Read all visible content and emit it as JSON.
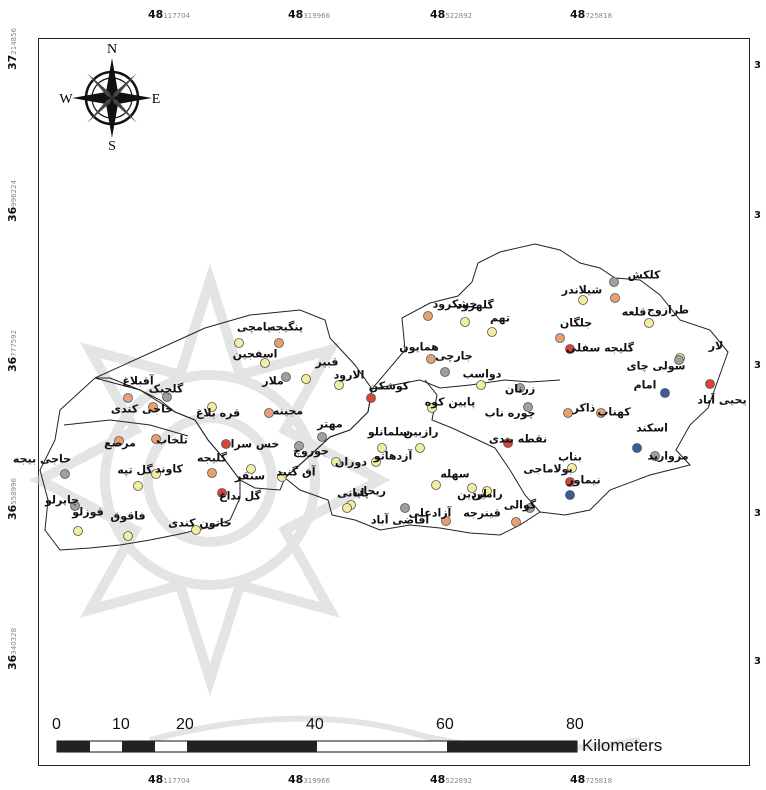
{
  "map": {
    "top_ticks": [
      {
        "major": "48",
        "minor": "117704"
      },
      {
        "major": "48",
        "minor": "319966"
      },
      {
        "major": "48",
        "minor": "522892"
      },
      {
        "major": "48",
        "minor": "725818"
      }
    ],
    "bottom_ticks": [
      {
        "major": "48",
        "minor": "117704"
      },
      {
        "major": "48",
        "minor": "319966"
      },
      {
        "major": "48",
        "minor": "522892"
      },
      {
        "major": "48",
        "minor": "725818"
      }
    ],
    "left_ticks": [
      {
        "major": "37",
        "minor": "214856"
      },
      {
        "major": "36",
        "minor": "996224"
      },
      {
        "major": "36",
        "minor": "777592"
      },
      {
        "major": "36",
        "minor": "558996"
      },
      {
        "major": "36",
        "minor": "340328"
      }
    ],
    "right_ticks": [
      "3",
      "3",
      "3",
      "3",
      "3"
    ],
    "compass": {
      "n": "N",
      "s": "S",
      "e": "E",
      "w": "W"
    },
    "scale": {
      "labels": [
        "0",
        "10",
        "20",
        "40",
        "60",
        "80"
      ],
      "unit": "Kilometers"
    },
    "colors": {
      "border": "#222222",
      "dot_yellow": "#f2eea0",
      "dot_orange": "#e8a070",
      "dot_red": "#d9433a",
      "dot_grey": "#9aa49a",
      "dot_blue": "#3d5a9a",
      "watermark": "#d8d8d8"
    },
    "places": [
      {
        "name": "کلکش",
        "color": "grey"
      },
      {
        "name": "شیلاندر",
        "color": "yellow"
      },
      {
        "name": "قلعه",
        "color": "orange"
      },
      {
        "name": "طرازوج",
        "color": "yellow"
      },
      {
        "name": "خشکرود",
        "color": "orange"
      },
      {
        "name": "گلهرود",
        "color": "yellow"
      },
      {
        "name": "تهم",
        "color": "yellow"
      },
      {
        "name": "جلگان",
        "color": "orange"
      },
      {
        "name": "ینگیجه",
        "color": "yellow"
      },
      {
        "name": "یامچی",
        "color": "orange"
      },
      {
        "name": "لار",
        "color": "yellow"
      },
      {
        "name": "همایون",
        "color": "orange"
      },
      {
        "name": "گلیجه سفلی",
        "color": "red"
      },
      {
        "name": "سولی چای",
        "color": "grey"
      },
      {
        "name": "اسفجین",
        "color": "yellow"
      },
      {
        "name": "جارچی",
        "color": "grey"
      },
      {
        "name": "امام",
        "color": "blue"
      },
      {
        "name": "قبیر",
        "color": "yellow"
      },
      {
        "name": "ملار",
        "color": "grey"
      },
      {
        "name": "الارود",
        "color": "yellow"
      },
      {
        "name": "کوشکن",
        "color": "red"
      },
      {
        "name": "دواسب",
        "color": "yellow"
      },
      {
        "name": "زرنان",
        "color": "grey"
      },
      {
        "name": "یحیی آباد",
        "color": "red"
      },
      {
        "name": "آقبلاغ",
        "color": "orange"
      },
      {
        "name": "گلجیک",
        "color": "grey"
      },
      {
        "name": "حاجی کندی",
        "color": "orange"
      },
      {
        "name": "پایین کوه",
        "color": "yellow"
      },
      {
        "name": "چوره ناب",
        "color": "grey"
      },
      {
        "name": "ذاکر",
        "color": "orange"
      },
      {
        "name": "کهناب",
        "color": "orange"
      },
      {
        "name": "قره بلاغ",
        "color": "yellow"
      },
      {
        "name": "مجینه",
        "color": "orange"
      },
      {
        "name": "مهتر",
        "color": "grey"
      },
      {
        "name": "سلمانلو",
        "color": "yellow"
      },
      {
        "name": "رازبین",
        "color": "yellow"
      },
      {
        "name": "نقطه بندی",
        "color": "red"
      },
      {
        "name": "اسکند",
        "color": "blue"
      },
      {
        "name": "تلخاب",
        "color": "orange"
      },
      {
        "name": "جوروچ",
        "color": "grey"
      },
      {
        "name": "خس سرا",
        "color": "red"
      },
      {
        "name": "مرصع",
        "color": "orange"
      },
      {
        "name": "حاجی بیجه",
        "color": "grey"
      },
      {
        "name": "گلیجه",
        "color": "orange"
      },
      {
        "name": "کاوند",
        "color": "yellow"
      },
      {
        "name": "گل تپه",
        "color": "yellow"
      },
      {
        "name": "آق گنبد",
        "color": "yellow"
      },
      {
        "name": "دوران",
        "color": "yellow"
      },
      {
        "name": "آزدهاتو",
        "color": "yellow"
      },
      {
        "name": "مروارید",
        "color": "grey"
      },
      {
        "name": "بناب",
        "color": "yellow"
      },
      {
        "name": "سنقر",
        "color": "yellow"
      },
      {
        "name": "سهله",
        "color": "yellow"
      },
      {
        "name": "نیماور",
        "color": "blue"
      },
      {
        "name": "چایرلو",
        "color": "grey"
      },
      {
        "name": "ریحان",
        "color": "yellow"
      },
      {
        "name": "پایانی",
        "color": "yellow"
      },
      {
        "name": "اردین",
        "color": "yellow"
      },
      {
        "name": "رامین",
        "color": "yellow"
      },
      {
        "name": "گل بداغ",
        "color": "red"
      },
      {
        "name": "قوزلو",
        "color": "yellow"
      },
      {
        "name": "فاقوق",
        "color": "yellow"
      },
      {
        "name": "اقاضی آباد",
        "color": "grey"
      },
      {
        "name": "آزادعلی",
        "color": "orange"
      },
      {
        "name": "قینرجه",
        "color": "orange"
      },
      {
        "name": "گوالی",
        "color": "grey"
      },
      {
        "name": "خاتون کندی",
        "color": "yellow"
      },
      {
        "name": "بولاماجی",
        "color": "red"
      }
    ]
  }
}
